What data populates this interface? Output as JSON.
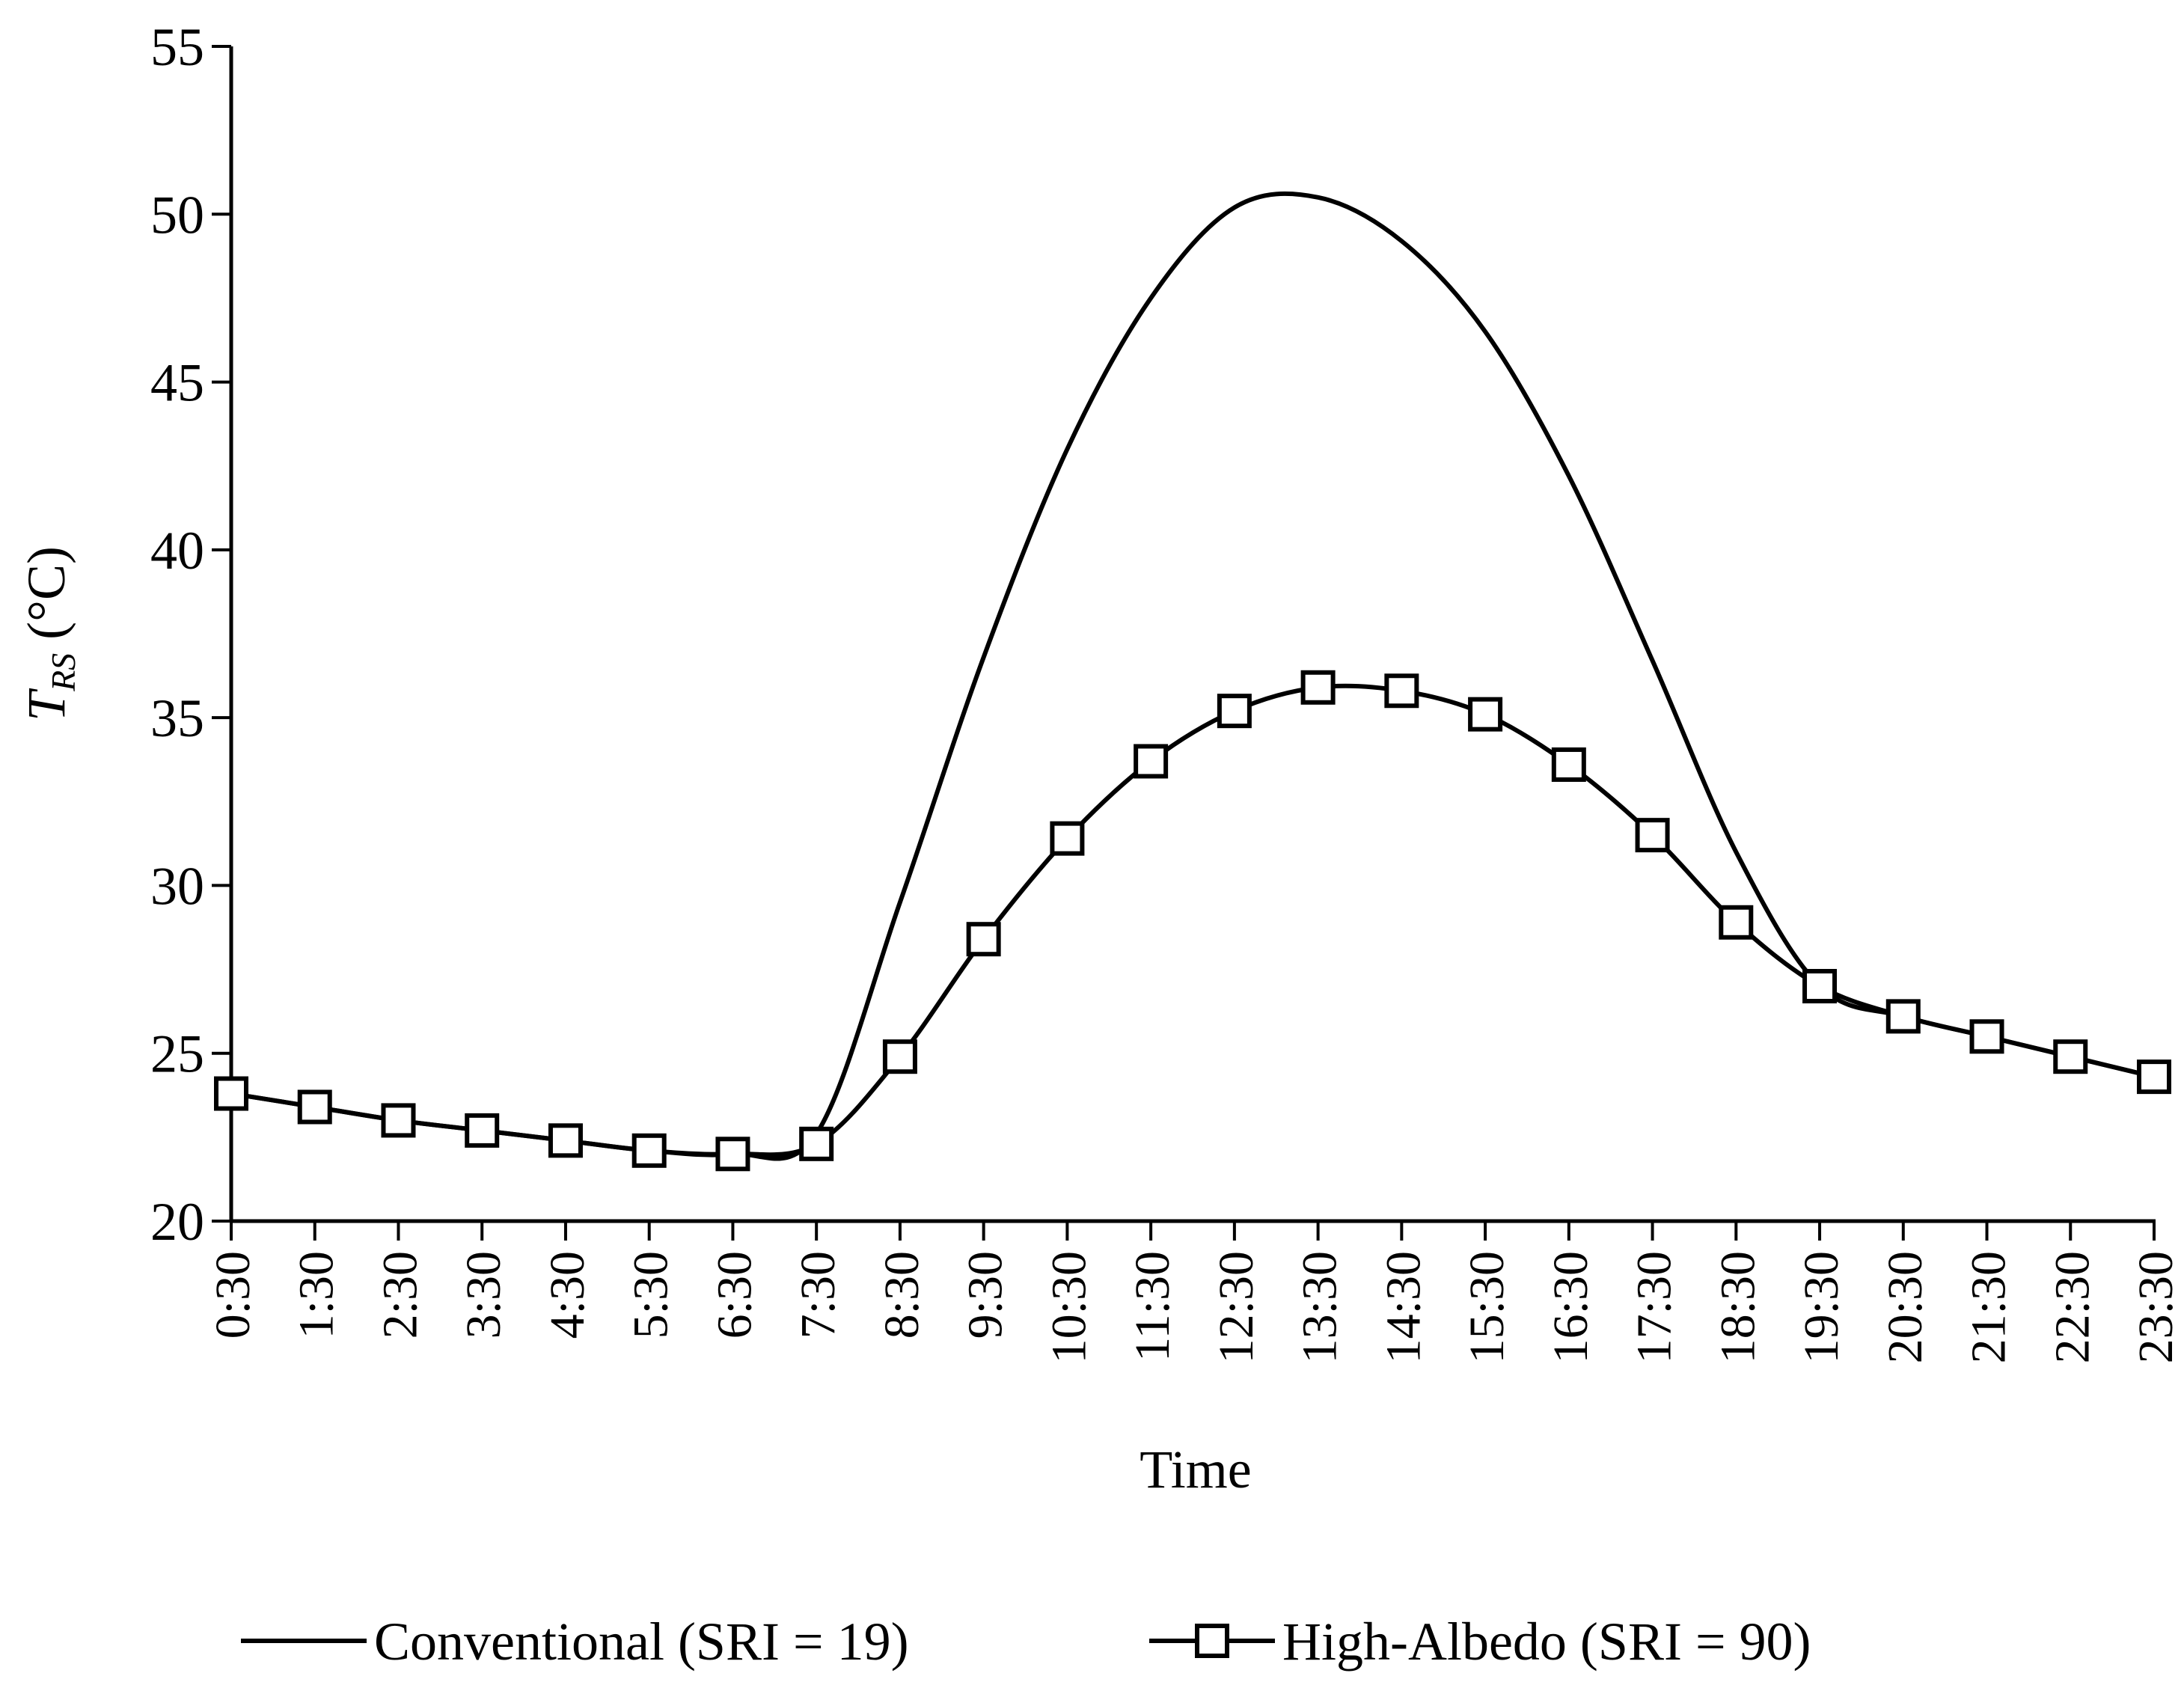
{
  "chart_data": {
    "type": "line",
    "title": "",
    "xlabel": "Time",
    "ylabel": {
      "main": "T",
      "subscript": "RS",
      "unit": " (°C)"
    },
    "ylim": [
      20,
      55
    ],
    "yticks": [
      20,
      25,
      30,
      35,
      40,
      45,
      50,
      55
    ],
    "grid": false,
    "legend_position": "bottom-center",
    "categories": [
      "0:30",
      "1:30",
      "2:30",
      "3:30",
      "4:30",
      "5:30",
      "6:30",
      "7:30",
      "8:30",
      "9:30",
      "10:30",
      "11:30",
      "12:30",
      "13:30",
      "14:30",
      "15:30",
      "16:30",
      "17:30",
      "18:30",
      "19:30",
      "20:30",
      "21:30",
      "22:30",
      "23:30"
    ],
    "series": [
      {
        "name": "Conventional (SRI = 19)",
        "marker": "none",
        "color": "#000000",
        "values": [
          23.8,
          23.4,
          23.0,
          22.7,
          22.4,
          22.1,
          22.0,
          22.6,
          29.5,
          36.8,
          43.0,
          47.5,
          50.2,
          50.5,
          49.2,
          46.5,
          42.2,
          36.7,
          31.0,
          27.0,
          26.1,
          25.5,
          24.9,
          24.3
        ]
      },
      {
        "name": "High-Albedo (SRI = 90)",
        "marker": "square",
        "color": "#000000",
        "values": [
          23.8,
          23.4,
          23.0,
          22.7,
          22.4,
          22.1,
          22.0,
          22.3,
          24.9,
          28.4,
          31.4,
          33.7,
          35.2,
          35.9,
          35.8,
          35.1,
          33.6,
          31.5,
          28.9,
          27.0,
          26.1,
          25.5,
          24.9,
          24.3
        ]
      }
    ]
  }
}
